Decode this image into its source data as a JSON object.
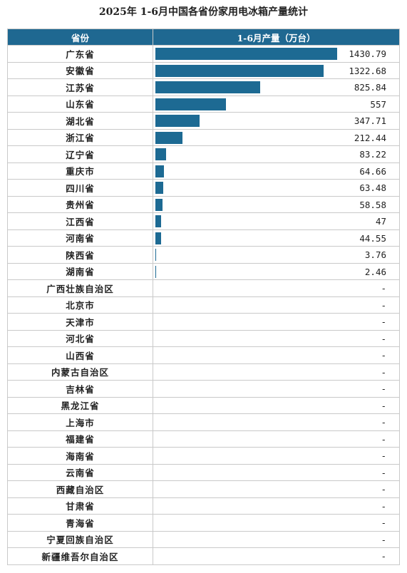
{
  "title": "2025年 1-6月中国各省份家用电冰箱产量统计",
  "chart_data": {
    "type": "table",
    "columns": [
      "省份",
      "1-6月产量（万台）"
    ],
    "rows": [
      {
        "province": "广东省",
        "value": 1430.79,
        "label": "1430.79"
      },
      {
        "province": "安徽省",
        "value": 1322.68,
        "label": "1322.68"
      },
      {
        "province": "江苏省",
        "value": 825.84,
        "label": "825.84"
      },
      {
        "province": "山东省",
        "value": 557,
        "label": "557"
      },
      {
        "province": "湖北省",
        "value": 347.71,
        "label": "347.71"
      },
      {
        "province": "浙江省",
        "value": 212.44,
        "label": "212.44"
      },
      {
        "province": "辽宁省",
        "value": 83.22,
        "label": "83.22"
      },
      {
        "province": "重庆市",
        "value": 64.66,
        "label": "64.66"
      },
      {
        "province": "四川省",
        "value": 63.48,
        "label": "63.48"
      },
      {
        "province": "贵州省",
        "value": 58.58,
        "label": "58.58"
      },
      {
        "province": "江西省",
        "value": 47,
        "label": "47"
      },
      {
        "province": "河南省",
        "value": 44.55,
        "label": "44.55"
      },
      {
        "province": "陕西省",
        "value": 3.76,
        "label": "3.76"
      },
      {
        "province": "湖南省",
        "value": 2.46,
        "label": "2.46"
      },
      {
        "province": "广西壮族自治区",
        "value": null,
        "label": "-"
      },
      {
        "province": "北京市",
        "value": null,
        "label": "-"
      },
      {
        "province": "天津市",
        "value": null,
        "label": "-"
      },
      {
        "province": "河北省",
        "value": null,
        "label": "-"
      },
      {
        "province": "山西省",
        "value": null,
        "label": "-"
      },
      {
        "province": "内蒙古自治区",
        "value": null,
        "label": "-"
      },
      {
        "province": "吉林省",
        "value": null,
        "label": "-"
      },
      {
        "province": "黑龙江省",
        "value": null,
        "label": "-"
      },
      {
        "province": "上海市",
        "value": null,
        "label": "-"
      },
      {
        "province": "福建省",
        "value": null,
        "label": "-"
      },
      {
        "province": "海南省",
        "value": null,
        "label": "-"
      },
      {
        "province": "云南省",
        "value": null,
        "label": "-"
      },
      {
        "province": "西藏自治区",
        "value": null,
        "label": "-"
      },
      {
        "province": "甘肃省",
        "value": null,
        "label": "-"
      },
      {
        "province": "青海省",
        "value": null,
        "label": "-"
      },
      {
        "province": "宁夏回族自治区",
        "value": null,
        "label": "-"
      },
      {
        "province": "新疆维吾尔自治区",
        "value": null,
        "label": "-"
      }
    ],
    "max": 1430.79
  },
  "colors": {
    "header_bg": "#1f6891",
    "bar": "#1d6a93"
  }
}
